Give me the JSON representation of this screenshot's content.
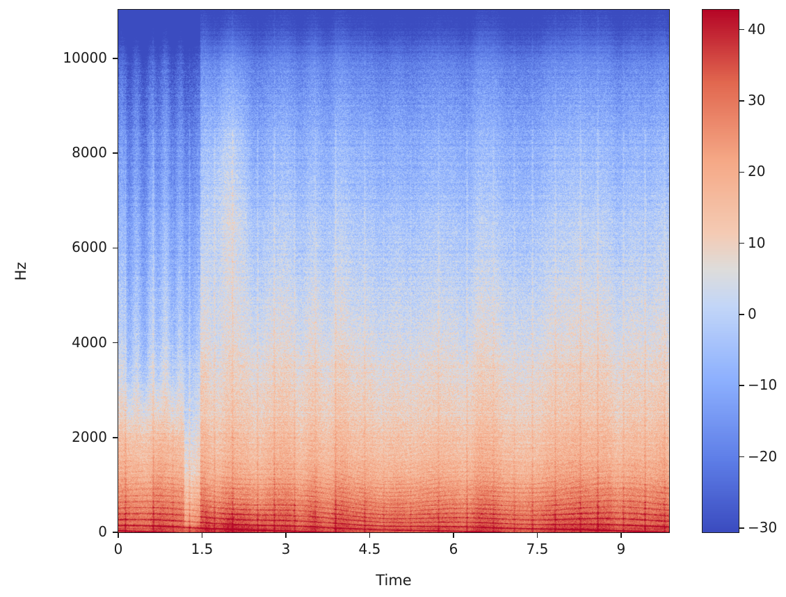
{
  "figure": {
    "background": "#ffffff"
  },
  "chart_data": {
    "type": "heatmap",
    "subtype": "audio-spectrogram",
    "title": "",
    "xlabel": "Time",
    "ylabel": "Hz",
    "x_range": [
      0,
      9.86
    ],
    "y_range": [
      0,
      11025
    ],
    "grid": false,
    "x_ticks": {
      "values": [
        0,
        1.5,
        3,
        4.5,
        6,
        7.5,
        9
      ],
      "labels": [
        "0",
        "1.5",
        "3",
        "4.5",
        "6",
        "7.5",
        "9"
      ]
    },
    "y_ticks": {
      "values": [
        0,
        2000,
        4000,
        6000,
        8000,
        10000
      ],
      "labels": [
        "0",
        "2000",
        "4000",
        "6000",
        "8000",
        "10000"
      ]
    },
    "colorbar": {
      "position": "right",
      "vmin": -30.6,
      "vmax": 42.8,
      "tick_values": [
        40,
        30,
        20,
        10,
        0,
        -10,
        -20,
        -30
      ],
      "tick_labels": [
        "40",
        "30",
        "20",
        "10",
        "0",
        "−10",
        "−20",
        "−30"
      ],
      "colormap": "coolwarm",
      "stops": [
        {
          "pos": 0.0,
          "color": "#3b4cc0"
        },
        {
          "pos": 0.14,
          "color": "#5f7fe8"
        },
        {
          "pos": 0.29,
          "color": "#8db0fe"
        },
        {
          "pos": 0.43,
          "color": "#c2d6f8"
        },
        {
          "pos": 0.5,
          "color": "#dddcdb"
        },
        {
          "pos": 0.57,
          "color": "#f4cbb4"
        },
        {
          "pos": 0.71,
          "color": "#f5a886"
        },
        {
          "pos": 0.86,
          "color": "#e1674f"
        },
        {
          "pos": 1.0,
          "color": "#b40426"
        }
      ]
    },
    "content": {
      "description": "Power spectrogram in dB: hot (dark red) energy below ~500 Hz fading through orange and white to blue above ~9 kHz; solid dark blue above ~10.5 kHz; vertical note-onset striping and low-frequency harmonic streaks throughout; quieter bluer passage before t=1.2, brief gap near t=1.3, warm mid-high burst around t=1.5-2.4",
      "frequency_profile_db": [
        [
          0,
          36
        ],
        [
          250,
          32
        ],
        [
          700,
          26
        ],
        [
          1500,
          17
        ],
        [
          2500,
          11.5
        ],
        [
          4000,
          5.5
        ],
        [
          6000,
          -1
        ],
        [
          7500,
          -6
        ],
        [
          8500,
          -10
        ],
        [
          9300,
          -14.5
        ],
        [
          9900,
          -19
        ],
        [
          10400,
          -26
        ],
        [
          10800,
          -31
        ],
        [
          11025,
          -33
        ]
      ],
      "noise_profile_db": [
        [
          0,
          3.5
        ],
        [
          400,
          5
        ],
        [
          2000,
          6.3
        ],
        [
          9500,
          6.3
        ],
        [
          10300,
          3.2
        ],
        [
          11025,
          2.5
        ]
      ],
      "harmonic_band_max_hz": 3000,
      "events": {
        "intro_quiet": {
          "t": [
            0,
            1.18
          ],
          "above_hz": 1800,
          "atten_db": -7.5
        },
        "gap": {
          "t": [
            1.18,
            1.47
          ],
          "atten_db": -9
        },
        "burst": {
          "t": [
            1.5,
            2.4
          ],
          "hz": [
            4500,
            9900
          ],
          "boost_db": 7.5
        },
        "bass_surge": {
          "t": [
            1.55,
            2.65
          ],
          "below_hz": 650,
          "boost_db": 4
        }
      },
      "seed": 42
    }
  }
}
